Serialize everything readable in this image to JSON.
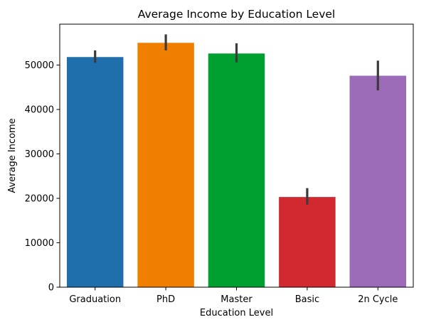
{
  "chart_data": {
    "type": "bar",
    "title": "Average Income by Education Level",
    "xlabel": "Education Level",
    "ylabel": "Average Income",
    "categories": [
      "Graduation",
      "PhD",
      "Master",
      "Basic",
      "2n Cycle"
    ],
    "values": [
      51800,
      55000,
      52600,
      20300,
      47600
    ],
    "error_low": [
      50500,
      53300,
      50600,
      18600,
      44300
    ],
    "error_high": [
      53300,
      56900,
      54900,
      22300,
      51000
    ],
    "colors": [
      "#1f6fad",
      "#f07f00",
      "#00a030",
      "#d1292f",
      "#9b6bb7"
    ],
    "errorbar_color": "#3b3b3b",
    "ylim": [
      0,
      59200
    ],
    "yticks": [
      0,
      10000,
      20000,
      30000,
      40000,
      50000
    ],
    "grid": false,
    "legend": "none"
  }
}
